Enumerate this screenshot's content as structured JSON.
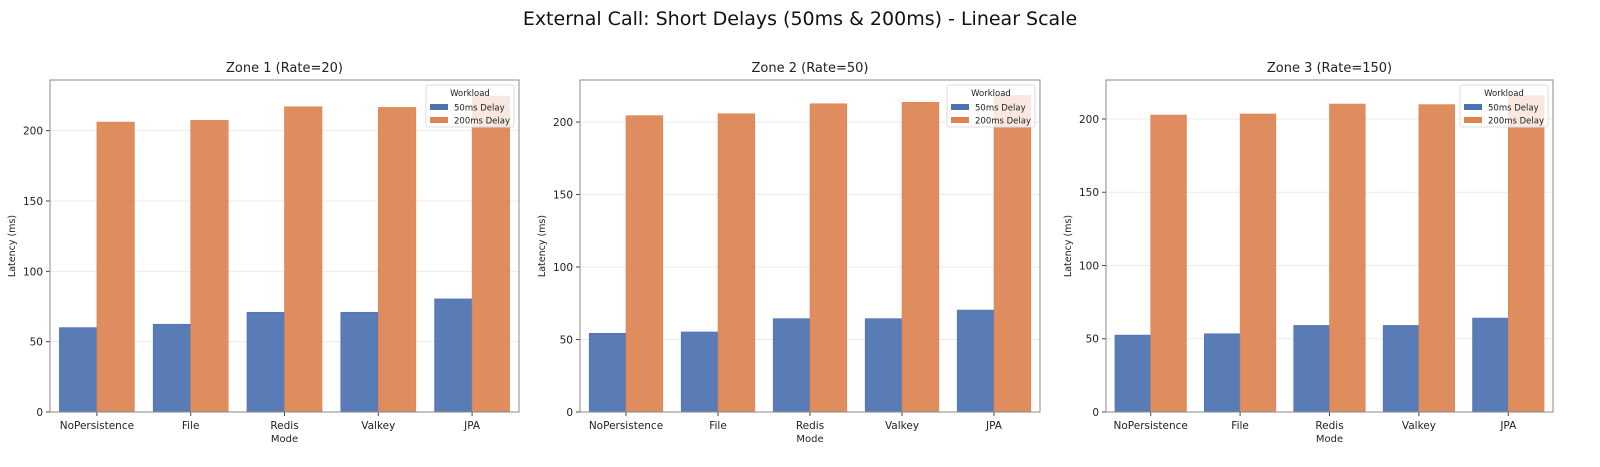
{
  "figure_title": "External Call: Short Delays (50ms & 200ms) - Linear Scale",
  "colors": {
    "50ms Delay": "#4c72b0",
    "200ms Delay": "#dd8452"
  },
  "chart_data": [
    {
      "type": "bar",
      "title": "Zone 1 (Rate=20)",
      "xlabel": "Mode",
      "ylabel": "Latency (ms)",
      "categories": [
        "NoPersistence",
        "File",
        "Redis",
        "Valkey",
        "JPA"
      ],
      "ylim": [
        0,
        236
      ],
      "yticks": [
        0,
        50,
        100,
        150,
        200
      ],
      "grid": true,
      "legend": {
        "title": "Workload",
        "placement": "top-right"
      },
      "series": [
        {
          "name": "50ms Delay",
          "values": [
            60.0,
            62.4,
            70.9,
            70.9,
            80.4
          ]
        },
        {
          "name": "200ms Delay",
          "values": [
            206.1,
            207.3,
            217.0,
            216.5,
            224.6
          ]
        }
      ]
    },
    {
      "type": "bar",
      "title": "Zone 2 (Rate=50)",
      "xlabel": "Mode",
      "ylabel": "Latency (ms)",
      "categories": [
        "NoPersistence",
        "File",
        "Redis",
        "Valkey",
        "JPA"
      ],
      "ylim": [
        0,
        229
      ],
      "yticks": [
        0,
        50,
        100,
        150,
        200
      ],
      "grid": true,
      "legend": {
        "title": "Workload",
        "placement": "top-right"
      },
      "series": [
        {
          "name": "50ms Delay",
          "values": [
            54.3,
            55.2,
            64.4,
            64.4,
            70.3
          ]
        },
        {
          "name": "200ms Delay",
          "values": [
            204.4,
            205.7,
            212.6,
            213.6,
            218.4
          ]
        }
      ]
    },
    {
      "type": "bar",
      "title": "Zone 3 (Rate=150)",
      "xlabel": "Mode",
      "ylabel": "Latency (ms)",
      "categories": [
        "NoPersistence",
        "File",
        "Redis",
        "Valkey",
        "JPA"
      ],
      "ylim": [
        0,
        226.6
      ],
      "yticks": [
        0,
        50,
        100,
        150,
        200
      ],
      "grid": true,
      "legend": {
        "title": "Workload",
        "placement": "top-right"
      },
      "series": [
        {
          "name": "50ms Delay",
          "values": [
            52.5,
            53.4,
            59.1,
            59.1,
            64.1
          ]
        },
        {
          "name": "200ms Delay",
          "values": [
            202.7,
            203.4,
            210.2,
            209.8,
            215.9
          ]
        }
      ]
    }
  ]
}
